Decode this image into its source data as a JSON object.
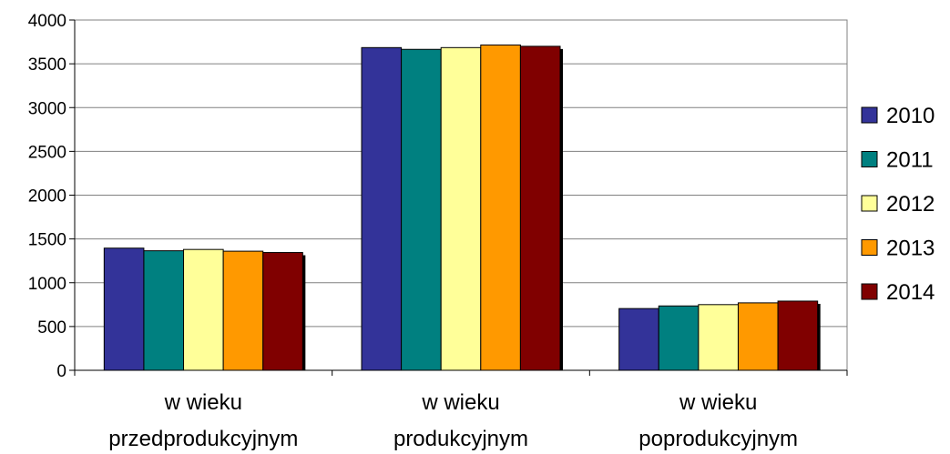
{
  "chart_data": {
    "type": "bar",
    "title": "",
    "xlabel": "",
    "ylabel": "",
    "ylim": [
      0,
      4000
    ],
    "yticks": [
      0,
      500,
      1000,
      1500,
      2000,
      2500,
      3000,
      3500,
      4000
    ],
    "grid": true,
    "legend_position": "right",
    "categories": [
      [
        "w wieku",
        "przedprodukcyjnym"
      ],
      [
        "w wieku",
        "produkcyjnym"
      ],
      [
        "w wieku",
        "poprodukcyjnym"
      ]
    ],
    "series": [
      {
        "name": "2010",
        "color": "#333399",
        "values": [
          1395,
          3685,
          705
        ]
      },
      {
        "name": "2011",
        "color": "#008080",
        "values": [
          1365,
          3665,
          735
        ]
      },
      {
        "name": "2012",
        "color": "#FFFF99",
        "values": [
          1380,
          3685,
          750
        ]
      },
      {
        "name": "2013",
        "color": "#FF9900",
        "values": [
          1360,
          3715,
          770
        ]
      },
      {
        "name": "2014",
        "color": "#800000",
        "values": [
          1345,
          3700,
          790
        ]
      }
    ]
  }
}
